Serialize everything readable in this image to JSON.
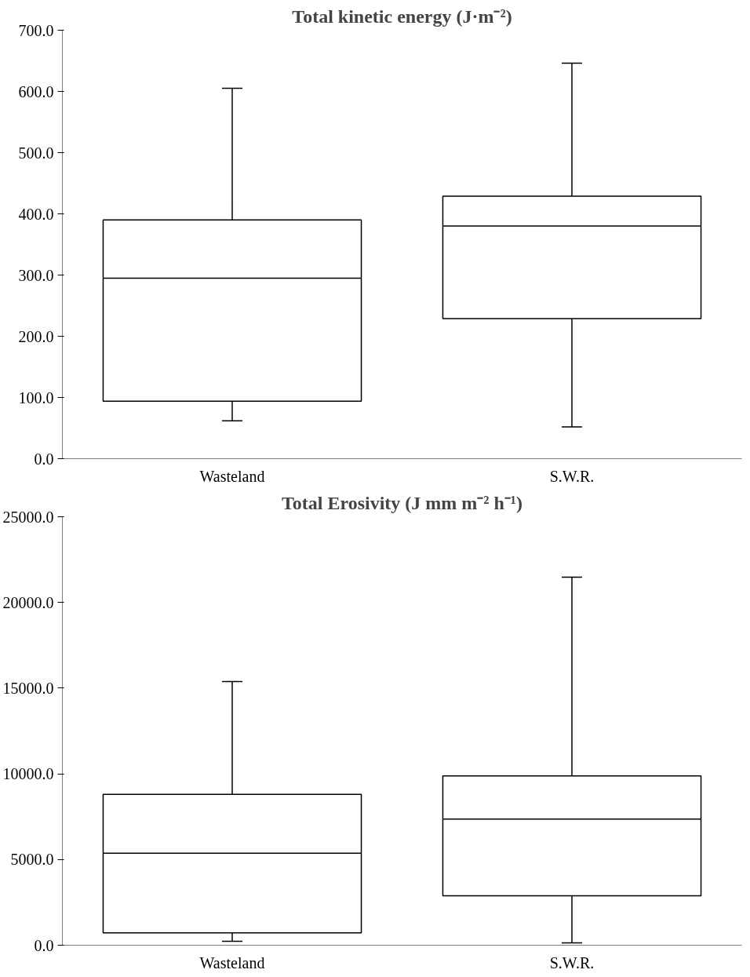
{
  "chart_data": [
    {
      "type": "box",
      "title": "Total kinetic energy (J·m⁻²)",
      "categories": [
        "Wasteland",
        "S.W.R."
      ],
      "boxes": [
        {
          "low": 62,
          "q1": 94,
          "median": 295,
          "q3": 390,
          "high": 605
        },
        {
          "low": 52,
          "q1": 229,
          "median": 380,
          "q3": 429,
          "high": 646
        }
      ],
      "ylim": [
        0,
        700
      ],
      "yticks": [
        {
          "value": 0,
          "label": "0.0"
        },
        {
          "value": 100,
          "label": "100.0"
        },
        {
          "value": 200,
          "label": "200.0"
        },
        {
          "value": 300,
          "label": "300.0"
        },
        {
          "value": 400,
          "label": "400.0"
        },
        {
          "value": 500,
          "label": "500.0"
        },
        {
          "value": 600,
          "label": "600.0"
        },
        {
          "value": 700,
          "label": "700.0"
        }
      ],
      "grid": false
    },
    {
      "type": "box",
      "title": "Total Erosivity (J mm m⁻² h⁻¹)",
      "categories": [
        "Wasteland",
        "S.W.R."
      ],
      "boxes": [
        {
          "low": 230,
          "q1": 720,
          "median": 5370,
          "q3": 8800,
          "high": 15390
        },
        {
          "low": 140,
          "q1": 2890,
          "median": 7360,
          "q3": 9880,
          "high": 21480
        }
      ],
      "ylim": [
        0,
        25000
      ],
      "yticks": [
        {
          "value": 0,
          "label": "0.0"
        },
        {
          "value": 5000,
          "label": "5000.0"
        },
        {
          "value": 10000,
          "label": "10000.0"
        },
        {
          "value": 15000,
          "label": "15000.0"
        },
        {
          "value": 20000,
          "label": "20000.0"
        },
        {
          "value": 25000,
          "label": "25000.0"
        }
      ],
      "grid": false
    }
  ]
}
